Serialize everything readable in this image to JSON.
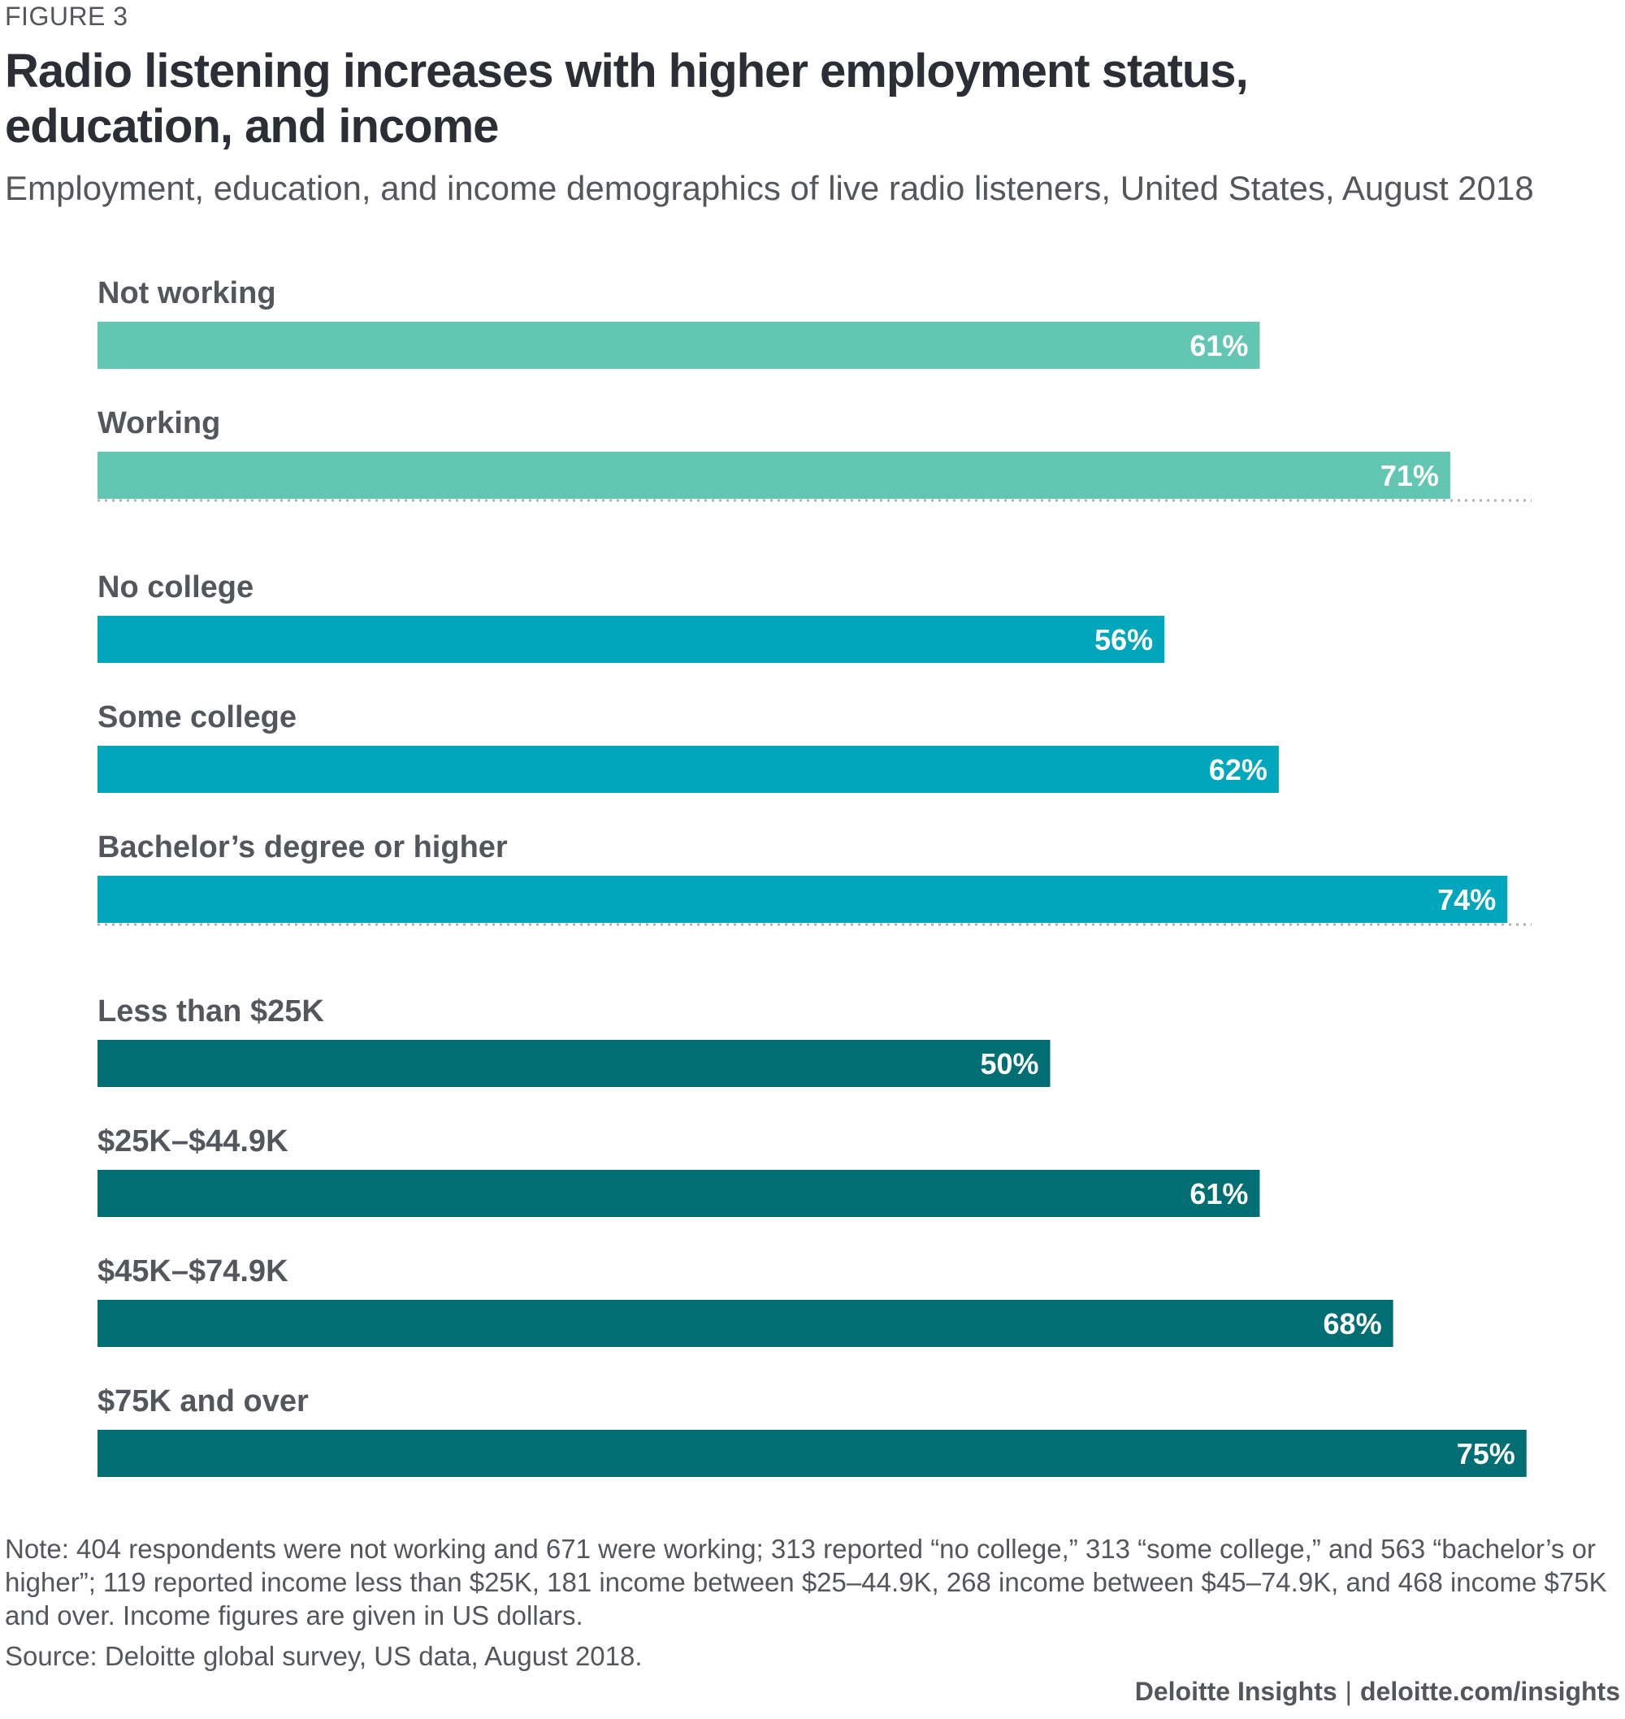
{
  "figure_label": "FIGURE 3",
  "title": "Radio listening increases with higher employment status, education, and income",
  "subtitle": "Employment, education, and income demographics of live radio listeners, United States, August 2018",
  "colors": {
    "employment": "#62c6b3",
    "education": "#00a7bc",
    "income": "#006e73",
    "divider": "#b0b0b0"
  },
  "chart_data": {
    "type": "bar",
    "orientation": "horizontal",
    "title": "Radio listening increases with higher employment status, education, and income",
    "subtitle": "Employment, education, and income demographics of live radio listeners, United States, August 2018",
    "xlabel": "",
    "ylabel": "",
    "xlim": [
      0,
      100
    ],
    "grid": false,
    "unit": "%",
    "groups": [
      {
        "name": "employment",
        "color": "#62c6b3",
        "categories": [
          "Not working",
          "Working"
        ],
        "values": [
          61,
          71
        ]
      },
      {
        "name": "education",
        "color": "#00a7bc",
        "categories": [
          "No college",
          "Some college",
          "Bachelor’s degree or higher"
        ],
        "values": [
          56,
          62,
          74
        ]
      },
      {
        "name": "income",
        "color": "#006e73",
        "categories": [
          "Less than $25K",
          "$25K–$44.9K",
          "$45K–$74.9K",
          "$75K and over"
        ],
        "values": [
          50,
          61,
          68,
          75
        ]
      }
    ],
    "data_labels": [
      "61%",
      "71%",
      "56%",
      "62%",
      "74%",
      "50%",
      "61%",
      "68%",
      "75%"
    ]
  },
  "note": "Note: 404 respondents were not working and 671 were working; 313 reported “no college,” 313 “some college,” and 563 “bachelor’s or higher”; 119 reported income less than $25K, 181 income between $25–44.9K, 268 income between $45–74.9K, and 468 income $75K and over. Income figures are given in US dollars.",
  "source": "Source: Deloitte global survey, US data, August 2018.",
  "footer": {
    "brand": "Deloitte Insights",
    "separator": "|",
    "url": "deloitte.com/insights"
  }
}
